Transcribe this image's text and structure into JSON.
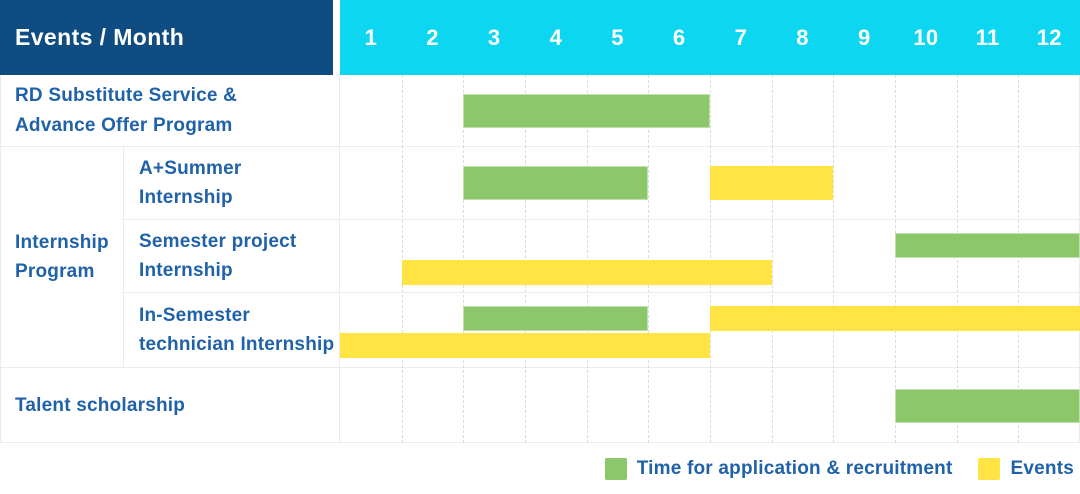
{
  "colors": {
    "header_bg": "#0f4c82",
    "months_bg": "#0cd6f0",
    "green": "#8cc86b",
    "yellow": "#ffe444",
    "label_text": "#2062a9",
    "border": "#ececec",
    "gridline": "#dcdcdc"
  },
  "header": {
    "title": "Events / Month",
    "months": [
      "1",
      "2",
      "3",
      "4",
      "5",
      "6",
      "7",
      "8",
      "9",
      "10",
      "11",
      "12"
    ]
  },
  "chart_data": {
    "type": "gantt",
    "unit": "month",
    "axis": {
      "min": 1,
      "max": 12
    },
    "legend": [
      {
        "key": "recruitment",
        "label": "Time for application & recruitment",
        "color": "#8cc86b"
      },
      {
        "key": "events",
        "label": "Events",
        "color": "#ffe444"
      }
    ],
    "rows": [
      {
        "group": "",
        "label": "RD Substitute Service & Advance Offer Program",
        "bars": [
          {
            "type": "recruitment",
            "start": 3,
            "end": 6,
            "lane": "mid"
          }
        ]
      },
      {
        "group": "Internship Program",
        "label": "A+Summer Internship",
        "bars": [
          {
            "type": "recruitment",
            "start": 3,
            "end": 5,
            "lane": "mid"
          },
          {
            "type": "events",
            "start": 7,
            "end": 8,
            "lane": "mid"
          }
        ]
      },
      {
        "group": "Internship Program",
        "label": "Semester project Internship",
        "bars": [
          {
            "type": "recruitment",
            "start": 10,
            "end": 12,
            "lane": "top"
          },
          {
            "type": "events",
            "start": 2,
            "end": 7,
            "lane": "bottom"
          }
        ]
      },
      {
        "group": "Internship Program",
        "label": "In-Semester technician Internship",
        "bars": [
          {
            "type": "recruitment",
            "start": 3,
            "end": 5,
            "lane": "top"
          },
          {
            "type": "events",
            "start": 7,
            "end": 12,
            "lane": "top"
          },
          {
            "type": "events",
            "start": 1,
            "end": 6,
            "lane": "bottom"
          }
        ]
      },
      {
        "group": "",
        "label": "Talent scholarship",
        "bars": [
          {
            "type": "recruitment",
            "start": 10,
            "end": 12,
            "lane": "mid"
          }
        ]
      }
    ]
  }
}
